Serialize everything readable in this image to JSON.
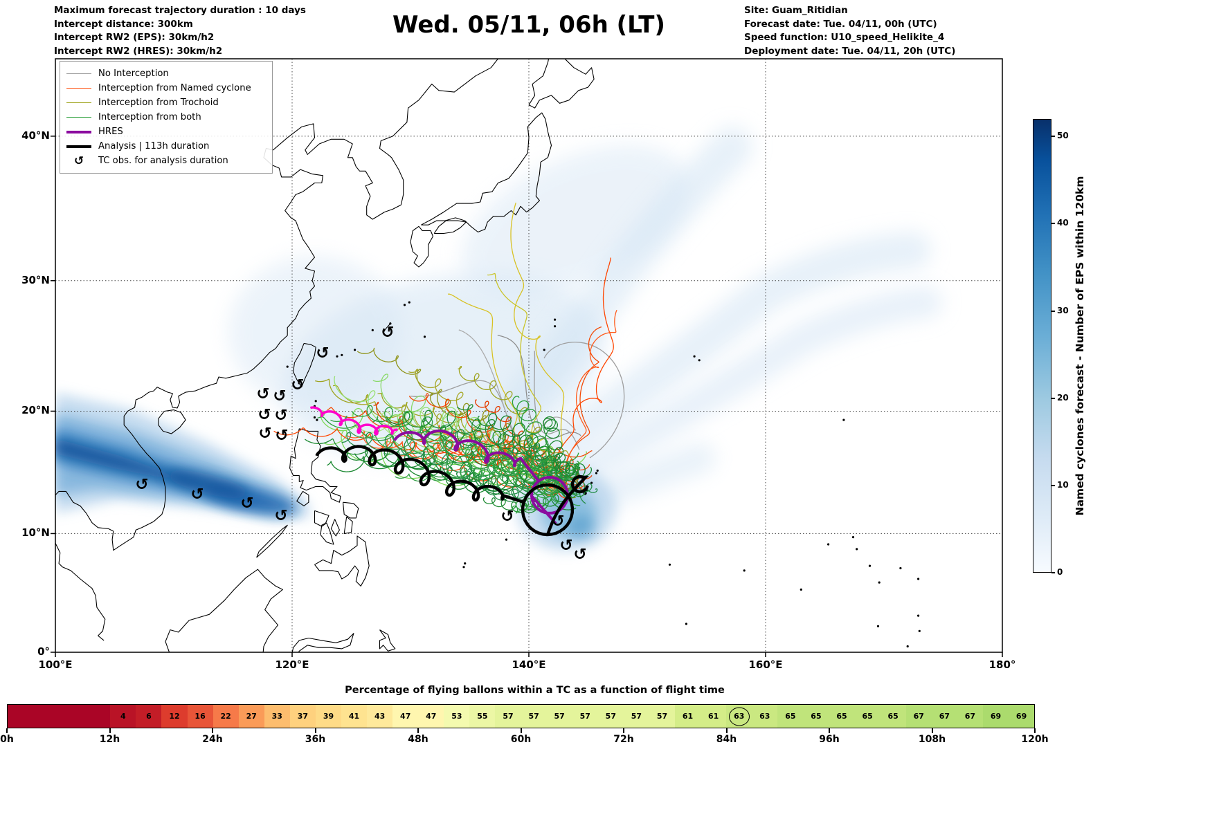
{
  "header": {
    "config_lines": [
      "Maximum forecast trajectory duration : 10 days",
      "Intercept distance: 300km",
      "Intercept RW2 (EPS):  30km/h2",
      "Intercept RW2 (HRES): 30km/h2"
    ],
    "title": "Wed. 05/11, 06h (LT)",
    "site_lines": [
      "Site: Guam_Ritidian",
      "Forecast date: Tue. 04/11, 00h (UTC)",
      "Speed function: U10_speed_Helikite_4",
      "Deployment date: Tue. 04/11, 20h (UTC)"
    ]
  },
  "map": {
    "x_tick_labels": [
      "100°E",
      "120°E",
      "140°E",
      "160°E",
      "180°"
    ],
    "x_tick_lons": [
      100,
      120,
      140,
      160,
      180
    ],
    "y_tick_labels": [
      "0°",
      "10°N",
      "20°N",
      "30°N",
      "40°N"
    ],
    "y_tick_lats": [
      0,
      10,
      20,
      30,
      40
    ],
    "legend": [
      {
        "label": "No Interception",
        "color": "#9e9e9e",
        "lw": 1.6
      },
      {
        "label": "Interception from Named cyclone",
        "color": "#ff4500",
        "lw": 1.6
      },
      {
        "label": "Interception from Trochoid",
        "color": "#9fa41f",
        "lw": 1.6
      },
      {
        "label": "Interception from both",
        "color": "#2aa03a",
        "lw": 1.6
      },
      {
        "label": "HRES",
        "color": "#8b0b9e",
        "lw": 4
      },
      {
        "label": "Analysis | 113h duration",
        "color": "#000000",
        "lw": 4
      },
      {
        "label": "TC obs. for analysis duration",
        "symbol": "↺"
      }
    ]
  },
  "colorbar": {
    "label": "Named cyclones forecast - Number of EPS within 120km",
    "ticks": [
      0,
      10,
      20,
      30,
      40,
      50
    ],
    "vmin": 0,
    "vmax": 52,
    "colors_low_high": [
      "#f7fbff",
      "#08306b"
    ]
  },
  "timebar": {
    "title": "Percentage of flying ballons within a TC as a function of flight time",
    "values": [
      null,
      null,
      null,
      null,
      4,
      6,
      12,
      16,
      22,
      27,
      33,
      37,
      39,
      41,
      43,
      47,
      47,
      53,
      55,
      57,
      57,
      57,
      57,
      57,
      57,
      57,
      61,
      61,
      63,
      63,
      65,
      65,
      65,
      65,
      65,
      67,
      67,
      67,
      69,
      69
    ],
    "circled_index": 28,
    "circled_value": 63,
    "bin_hours": 3,
    "tick_labels": [
      "0h",
      "12h",
      "24h",
      "36h",
      "48h",
      "60h",
      "72h",
      "84h",
      "96h",
      "108h",
      "120h"
    ]
  },
  "chart_data": [
    {
      "type": "map",
      "title": "Wed. 05/11, 06h (LT)",
      "region": "Western North Pacific / East Asia",
      "x_axis": {
        "ticks": [
          "100°E",
          "120°E",
          "140°E",
          "160°E",
          "180°"
        ],
        "range_deg": [
          100,
          180
        ]
      },
      "y_axis": {
        "ticks": [
          "0°",
          "10°N",
          "20°N",
          "30°N",
          "40°N"
        ],
        "range_deg": [
          0,
          45
        ]
      },
      "series": [
        {
          "name": "No Interception",
          "style": "thin line",
          "color": "#9e9e9e"
        },
        {
          "name": "Interception from Named cyclone",
          "style": "thin line",
          "color": "#ff4500"
        },
        {
          "name": "Interception from Trochoid",
          "style": "thin line",
          "color": "#9fa41f"
        },
        {
          "name": "Interception from both",
          "style": "thin line",
          "color": "#2aa03a"
        },
        {
          "name": "HRES",
          "style": "thick line",
          "color": "#8b0b9e"
        },
        {
          "name": "Analysis | 113h duration",
          "style": "thick line",
          "color": "#000000"
        },
        {
          "name": "TC obs. for analysis duration",
          "style": "symbol",
          "symbol": "↺"
        }
      ],
      "shading": {
        "label": "Named cyclones forecast - Number of EPS within 120km",
        "colormap": "Blues",
        "range": [
          0,
          52
        ],
        "ticks": [
          0,
          10,
          20,
          30,
          40,
          50
        ]
      },
      "notes": "Ensemble balloon trajectories converge near Guam (~13.5N 145E) and spread west across the Philippine Sea with cycloidal loops; darkest EPS named-cyclone density band lies near 10-17N between 100E and 125E."
    },
    {
      "type": "heatmap",
      "title": "Percentage of flying ballons within a TC as a function of flight time",
      "x_tick_labels": [
        "0h",
        "12h",
        "24h",
        "36h",
        "48h",
        "60h",
        "72h",
        "84h",
        "96h",
        "108h",
        "120h"
      ],
      "bin_hours": 3,
      "values": [
        null,
        null,
        null,
        null,
        4,
        6,
        12,
        16,
        22,
        27,
        33,
        37,
        39,
        41,
        43,
        47,
        47,
        53,
        55,
        57,
        57,
        57,
        57,
        57,
        57,
        57,
        61,
        61,
        63,
        63,
        65,
        65,
        65,
        65,
        65,
        67,
        67,
        67,
        69,
        69
      ],
      "circled_index": 28,
      "circled_value": 63,
      "colormap": "RdYlGn",
      "value_range": [
        0,
        100
      ]
    }
  ]
}
